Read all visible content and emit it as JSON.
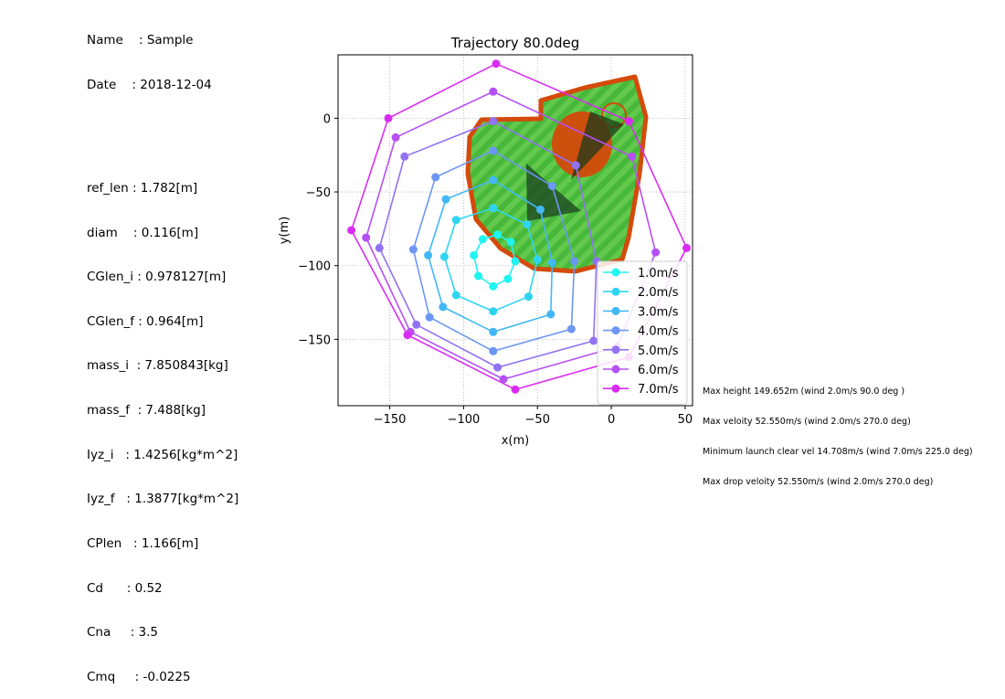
{
  "header": {
    "name_line": "Name    : Sample",
    "date_line": "Date    : 2018-12-04"
  },
  "params": [
    "ref_len : 1.782[m]",
    "diam    : 0.116[m]",
    "CGlen_i : 0.978127[m]",
    "CGlen_f : 0.964[m]",
    "mass_i  : 7.850843[kg]",
    "mass_f  : 7.488[kg]",
    "Iyz_i   : 1.4256[kg*m^2]",
    "Iyz_f   : 1.3877[kg*m^2]",
    "CPlen   : 1.166[m]",
    "Cd      : 0.52",
    "Cna     : 3.5",
    "Cmq     : -0.0225"
  ],
  "stats": [
    "Max height 149.652m (wind 2.0m/s 90.0 deg )",
    "Max veloity 52.550m/s (wind 2.0m/s 270.0 deg)",
    "Minimum launch clear vel 14.708m/s (wind 7.0m/s 225.0 deg)",
    "Max drop veloity 52.550m/s (wind 2.0m/s 270.0 deg)"
  ],
  "chart_data": {
    "type": "line",
    "title": "Trajectory 80.0deg",
    "xlabel": "x(m)",
    "ylabel": "y(m)",
    "xlim": [
      -185,
      55
    ],
    "ylim": [
      -195,
      43
    ],
    "xticks": [
      -150,
      -100,
      -50,
      0,
      50
    ],
    "yticks": [
      0,
      -50,
      -100,
      -150
    ],
    "xtick_labels": [
      "−150",
      "−100",
      "−50",
      "0",
      "50"
    ],
    "ytick_labels": [
      "0",
      "−50",
      "−100",
      "−150"
    ],
    "grid": true,
    "legend_position": "lower-right",
    "series": [
      {
        "name": "1.0m/s",
        "color": "#1ff4f0",
        "points": [
          [
            -65,
            -97
          ],
          [
            -68,
            -84
          ],
          [
            -77,
            -79
          ],
          [
            -87,
            -82
          ],
          [
            -93,
            -93
          ],
          [
            -90,
            -107
          ],
          [
            -80,
            -114
          ],
          [
            -70,
            -109
          ]
        ]
      },
      {
        "name": "2.0m/s",
        "color": "#2fd5f0",
        "points": [
          [
            -50,
            -96
          ],
          [
            -57,
            -72
          ],
          [
            -80,
            -61
          ],
          [
            -105,
            -69
          ],
          [
            -113,
            -94
          ],
          [
            -105,
            -120
          ],
          [
            -80,
            -131
          ],
          [
            -56,
            -121
          ]
        ]
      },
      {
        "name": "3.0m/s",
        "color": "#42b7f5",
        "points": [
          [
            -40,
            -98
          ],
          [
            -48,
            -62
          ],
          [
            -80,
            -42
          ],
          [
            -112,
            -55
          ],
          [
            -124,
            -93
          ],
          [
            -114,
            -128
          ],
          [
            -80,
            -145
          ],
          [
            -41,
            -133
          ]
        ]
      },
      {
        "name": "4.0m/s",
        "color": "#6c96f4",
        "points": [
          [
            -25,
            -97
          ],
          [
            -40,
            -46
          ],
          [
            -80,
            -22
          ],
          [
            -119,
            -40
          ],
          [
            -134,
            -89
          ],
          [
            -123,
            -135
          ],
          [
            -80,
            -158
          ],
          [
            -27,
            -143
          ]
        ]
      },
      {
        "name": "5.0m/s",
        "color": "#9172f3",
        "points": [
          [
            -10,
            -97
          ],
          [
            -24,
            -32
          ],
          [
            -80,
            -2
          ],
          [
            -140,
            -26
          ],
          [
            -157,
            -88
          ],
          [
            -132,
            -140
          ],
          [
            -77,
            -169
          ],
          [
            -12,
            -151
          ]
        ]
      },
      {
        "name": "6.0m/s",
        "color": "#b551f4",
        "points": [
          [
            30,
            -91
          ],
          [
            14,
            -26
          ],
          [
            -80,
            18
          ],
          [
            -146,
            -13
          ],
          [
            -166,
            -81
          ],
          [
            -136,
            -145
          ],
          [
            -73,
            -177
          ],
          [
            4,
            -155
          ]
        ]
      },
      {
        "name": "7.0m/s",
        "color": "#d92cf2",
        "points": [
          [
            51,
            -88
          ],
          [
            12,
            -2
          ],
          [
            -78,
            37
          ],
          [
            -151,
            0
          ],
          [
            -176,
            -76
          ],
          [
            -138,
            -147
          ],
          [
            -65,
            -184
          ],
          [
            12,
            -162
          ]
        ]
      }
    ]
  }
}
